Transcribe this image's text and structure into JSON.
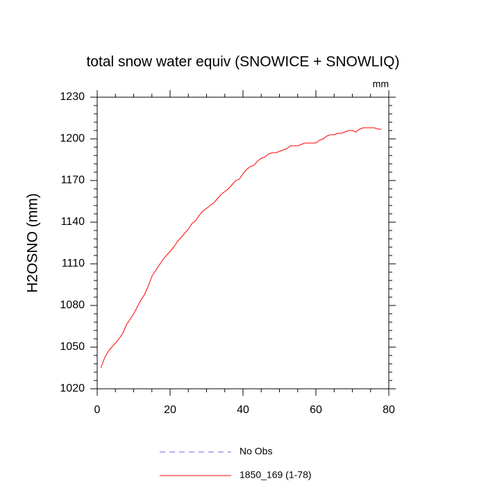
{
  "chart_data": {
    "type": "line",
    "title": "total snow water equiv (SNOWICE + SNOWLIQ)",
    "units": "mm",
    "ylabel": "H2OSNO  (mm)",
    "x": [
      1,
      2,
      3,
      4,
      5,
      6,
      7,
      8,
      9,
      10,
      11,
      12,
      13,
      14,
      15,
      16,
      17,
      18,
      19,
      20,
      21,
      22,
      23,
      24,
      25,
      26,
      27,
      28,
      29,
      30,
      31,
      32,
      33,
      34,
      35,
      36,
      37,
      38,
      39,
      40,
      41,
      42,
      43,
      44,
      45,
      46,
      47,
      48,
      49,
      50,
      51,
      52,
      53,
      54,
      55,
      56,
      57,
      58,
      59,
      60,
      61,
      62,
      63,
      64,
      65,
      66,
      67,
      68,
      69,
      70,
      71,
      72,
      73,
      74,
      75,
      76,
      77,
      78
    ],
    "series": [
      {
        "name": "No Obs",
        "color": "#6666ee",
        "dashed": true,
        "values": [
          null,
          null,
          null,
          null,
          null,
          null,
          null,
          null,
          null,
          null,
          null,
          null,
          null,
          null,
          null,
          null,
          null,
          null,
          null,
          null,
          null,
          null,
          null,
          null,
          null,
          null,
          null,
          null,
          null,
          null,
          null,
          null,
          null,
          null,
          null,
          null,
          null,
          null,
          null,
          null,
          null,
          null,
          null,
          null,
          null,
          null,
          null,
          null,
          null,
          null,
          null,
          null,
          null,
          null,
          null,
          null,
          null,
          null,
          null,
          null,
          null,
          null,
          null,
          null,
          null,
          null,
          null,
          null,
          null,
          null,
          null,
          null,
          null,
          null,
          null,
          null,
          null,
          null
        ]
      },
      {
        "name": "1850_169 (1-78)",
        "color": "#ff0000",
        "dashed": false,
        "values": [
          1035,
          1042,
          1047,
          1050,
          1053,
          1056,
          1060,
          1066,
          1070,
          1074,
          1079,
          1084,
          1088,
          1094,
          1101,
          1105,
          1109,
          1113,
          1116,
          1119,
          1122,
          1126,
          1129,
          1132,
          1135,
          1139,
          1141,
          1145,
          1148,
          1150,
          1152,
          1154,
          1157,
          1160,
          1162,
          1164,
          1167,
          1170,
          1171,
          1175,
          1178,
          1180,
          1181,
          1184,
          1186,
          1187,
          1189,
          1190,
          1190,
          1191,
          1192,
          1193,
          1195,
          1195,
          1195,
          1196,
          1197,
          1197,
          1197,
          1197,
          1199,
          1200,
          1202,
          1203,
          1203,
          1204,
          1204,
          1205,
          1206,
          1206,
          1205,
          1207,
          1208,
          1208,
          1208,
          1208,
          1207,
          1207
        ]
      }
    ],
    "xlim": [
      0,
      80
    ],
    "xticks": [
      0,
      20,
      40,
      60,
      80
    ],
    "xminorticks": [
      5,
      10,
      15,
      25,
      30,
      35,
      45,
      50,
      55,
      65,
      70,
      75
    ],
    "ylim": [
      1020,
      1230
    ],
    "yticks": [
      1020,
      1050,
      1080,
      1110,
      1140,
      1170,
      1200,
      1230
    ],
    "yminorticks": [
      1026,
      1032,
      1038,
      1044,
      1056,
      1062,
      1068,
      1074,
      1086,
      1092,
      1098,
      1104,
      1116,
      1122,
      1128,
      1134,
      1146,
      1152,
      1158,
      1164,
      1176,
      1182,
      1188,
      1194,
      1206,
      1212,
      1218,
      1224
    ]
  }
}
